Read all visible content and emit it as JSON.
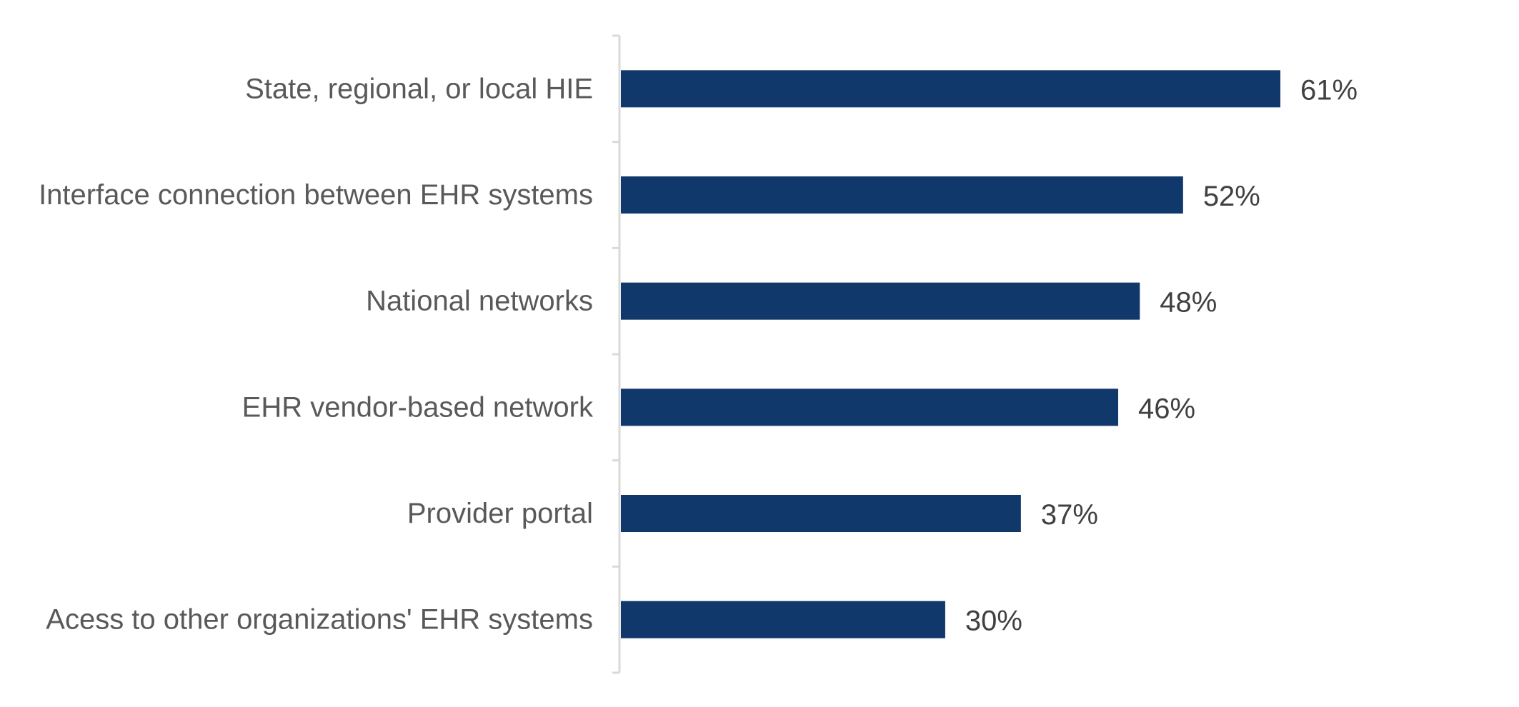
{
  "chart_data": {
    "type": "bar",
    "orientation": "horizontal",
    "title": "",
    "xlabel": "",
    "ylabel": "",
    "categories": [
      "State, regional, or local HIE",
      "Interface connection between EHR systems",
      "National networks",
      "EHR vendor-based network",
      "Provider portal",
      "Acess to other organizations' EHR systems"
    ],
    "values": [
      61,
      52,
      48,
      46,
      37,
      30
    ],
    "value_labels": [
      "61%",
      "52%",
      "48%",
      "46%",
      "37%",
      "30%"
    ],
    "xlim": [
      0,
      100
    ],
    "grid": false,
    "legend": "none",
    "bar_color": "#10386b"
  }
}
